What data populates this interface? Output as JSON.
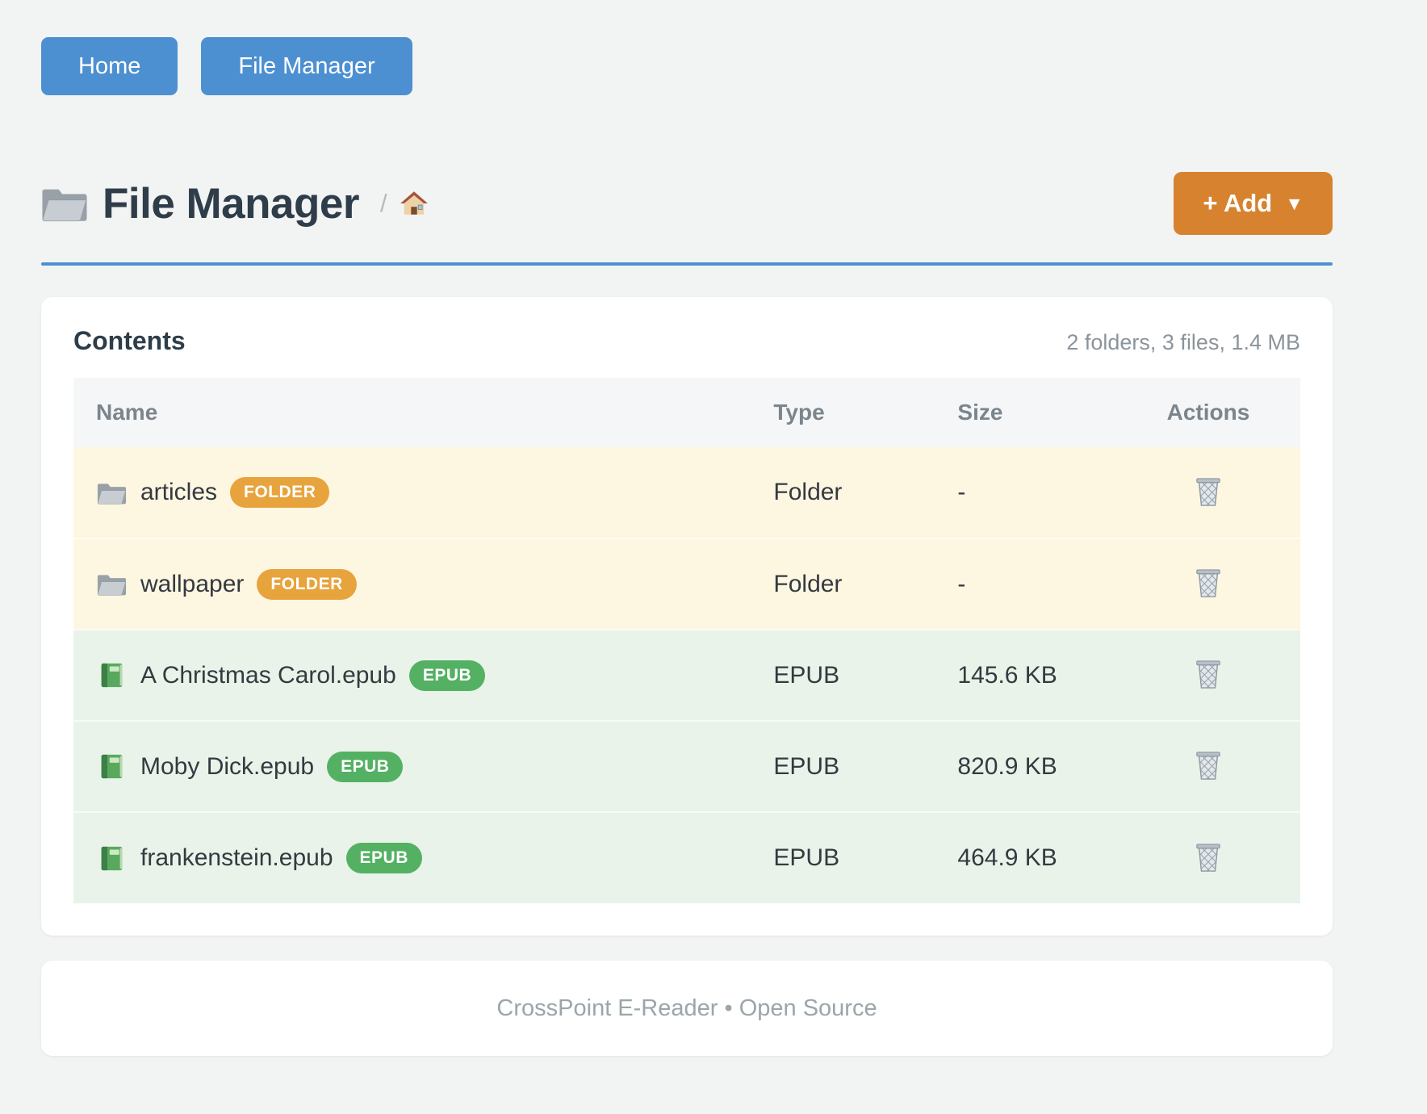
{
  "nav": {
    "buttons": [
      {
        "label": "Home"
      },
      {
        "label": "File Manager"
      }
    ]
  },
  "header": {
    "title": "File Manager",
    "title_icon": "folder-icon",
    "breadcrumb": {
      "separator": "/",
      "home_icon": "house-icon"
    },
    "add_button": {
      "label": "+ Add",
      "caret": "▼",
      "color": "#d7822f"
    }
  },
  "contents": {
    "heading": "Contents",
    "summary": "2 folders, 3 files, 1.4 MB",
    "table": {
      "columns": [
        "Name",
        "Type",
        "Size",
        "Actions"
      ],
      "action_icon": "trash-icon",
      "rows": [
        {
          "kind": "folder",
          "icon": "folder-icon",
          "name": "articles",
          "badge": "FOLDER",
          "badge_color": "#e7a33c",
          "type": "Folder",
          "size": "-"
        },
        {
          "kind": "folder",
          "icon": "folder-icon",
          "name": "wallpaper",
          "badge": "FOLDER",
          "badge_color": "#e7a33c",
          "type": "Folder",
          "size": "-"
        },
        {
          "kind": "file",
          "icon": "book-icon",
          "name": "A Christmas Carol.epub",
          "badge": "EPUB",
          "badge_color": "#54b163",
          "type": "EPUB",
          "size": "145.6 KB"
        },
        {
          "kind": "file",
          "icon": "book-icon",
          "name": "Moby Dick.epub",
          "badge": "EPUB",
          "badge_color": "#54b163",
          "type": "EPUB",
          "size": "820.9 KB"
        },
        {
          "kind": "file",
          "icon": "book-icon",
          "name": "frankenstein.epub",
          "badge": "EPUB",
          "badge_color": "#54b163",
          "type": "EPUB",
          "size": "464.9 KB"
        }
      ]
    }
  },
  "footer": {
    "text": "CrossPoint E-Reader • Open Source"
  },
  "colors": {
    "accent_blue": "#4d90d2",
    "accent_orange": "#d7822f",
    "folder_row_bg": "#fdf6e1",
    "file_row_bg": "#e9f3e9"
  }
}
